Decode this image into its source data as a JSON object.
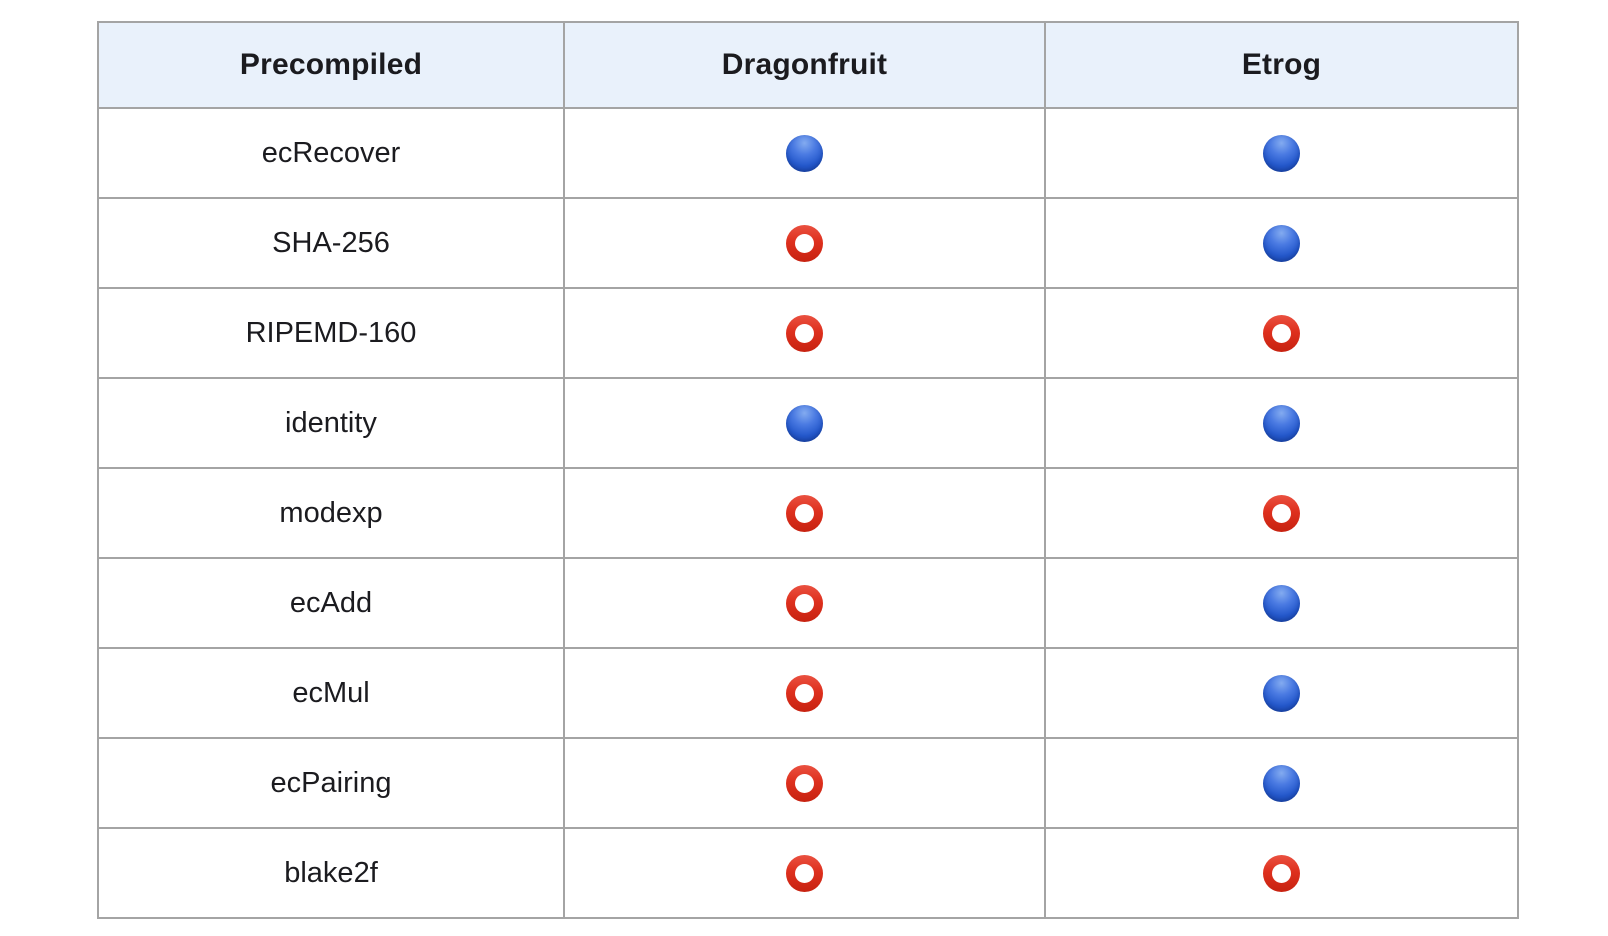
{
  "table": {
    "columns": [
      {
        "label": "Precompiled"
      },
      {
        "label": "Dragonfruit"
      },
      {
        "label": "Etrog"
      }
    ],
    "rows": [
      {
        "label": "ecRecover",
        "dragonfruit": "supported",
        "etrog": "supported"
      },
      {
        "label": "SHA-256",
        "dragonfruit": "not_supported",
        "etrog": "supported"
      },
      {
        "label": "RIPEMD-160",
        "dragonfruit": "not_supported",
        "etrog": "not_supported"
      },
      {
        "label": "identity",
        "dragonfruit": "supported",
        "etrog": "supported"
      },
      {
        "label": "modexp",
        "dragonfruit": "not_supported",
        "etrog": "not_supported"
      },
      {
        "label": "ecAdd",
        "dragonfruit": "not_supported",
        "etrog": "supported"
      },
      {
        "label": "ecMul",
        "dragonfruit": "not_supported",
        "etrog": "supported"
      },
      {
        "label": "ecPairing",
        "dragonfruit": "not_supported",
        "etrog": "supported"
      },
      {
        "label": "blake2f",
        "dragonfruit": "not_supported",
        "etrog": "not_supported"
      }
    ],
    "status_icons": {
      "supported": "blue-circle-icon",
      "not_supported": "red-hollow-circle-icon"
    },
    "colors": {
      "header_background": "#e9f1fb",
      "border": "#a4a4a4",
      "supported_blue": "#2458cb",
      "not_supported_red": "#de301e"
    }
  }
}
